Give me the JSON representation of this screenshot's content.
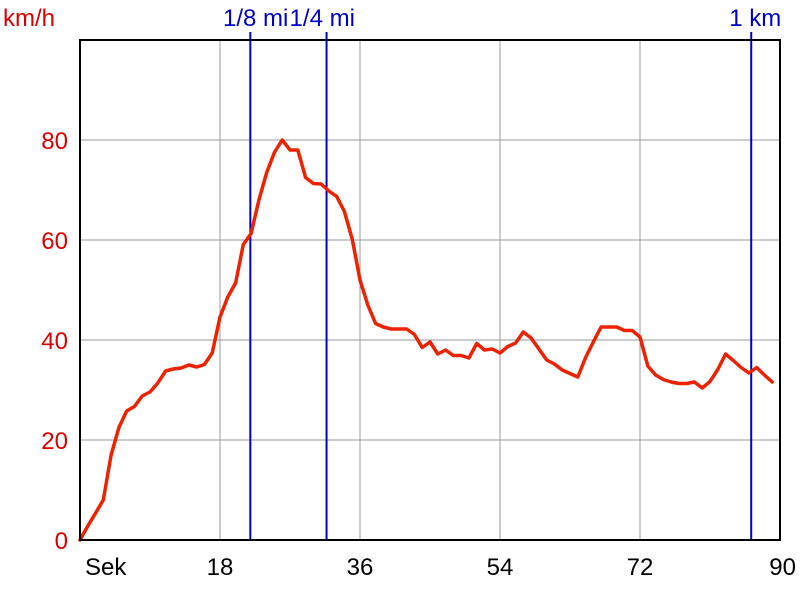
{
  "colors": {
    "series": "#ee2200",
    "axis_text_y": "#dd0000",
    "marker": "#0000cc",
    "grid": "#999999",
    "frame": "#000000"
  },
  "chart_data": {
    "type": "line",
    "title": "",
    "ylabel": "km/h",
    "xlabel": "Sek",
    "xlim": [
      0,
      90
    ],
    "ylim": [
      0,
      100
    ],
    "grid": true,
    "x_ticks": [
      {
        "value": 0,
        "label": "Sek"
      },
      {
        "value": 18,
        "label": "18"
      },
      {
        "value": 36,
        "label": "36"
      },
      {
        "value": 54,
        "label": "54"
      },
      {
        "value": 72,
        "label": "72"
      },
      {
        "value": 90,
        "label": "90"
      }
    ],
    "y_ticks": [
      {
        "value": 0,
        "label": "0"
      },
      {
        "value": 20,
        "label": "20"
      },
      {
        "value": 40,
        "label": "40"
      },
      {
        "value": 60,
        "label": "60"
      },
      {
        "value": 80,
        "label": "80"
      }
    ],
    "markers": [
      {
        "label": "1/8 mi",
        "x": 21.9
      },
      {
        "label": "1/4 mi",
        "x": 31.7
      },
      {
        "label": "1 km",
        "x": 86.3
      }
    ],
    "series": [
      {
        "x": [
          0,
          1,
          2,
          3,
          4,
          5,
          6,
          7,
          8,
          9,
          10,
          11,
          12,
          13,
          14,
          15,
          16,
          17,
          18,
          19,
          20,
          21,
          22,
          23,
          24,
          25,
          26,
          27,
          28,
          29,
          30,
          31,
          32,
          33,
          34,
          35,
          36,
          37,
          38,
          39,
          40,
          41,
          42,
          43,
          44,
          45,
          46,
          47,
          48,
          49,
          50,
          51,
          52,
          53,
          54,
          55,
          56,
          57,
          58,
          59,
          60,
          61,
          62,
          63,
          64,
          65,
          66,
          67,
          68,
          69,
          70,
          71,
          72,
          73,
          74,
          75,
          76,
          77,
          78,
          79,
          80,
          81,
          82,
          83,
          84,
          85,
          86,
          87,
          88,
          89
        ],
        "values": [
          0,
          2.8,
          5.4,
          8,
          17,
          22.5,
          25.8,
          26.7,
          28.8,
          29.6,
          31.4,
          33.8,
          34.2,
          34.4,
          35,
          34.6,
          35.1,
          37.4,
          44.6,
          48.6,
          51.4,
          59.1,
          61.3,
          68,
          73.5,
          77.5,
          80,
          78,
          78,
          72.5,
          71.3,
          71.2,
          69.8,
          68.7,
          65.7,
          60.2,
          52,
          47,
          43.3,
          42.6,
          42.2,
          42.2,
          42.2,
          41.1,
          38.5,
          39.6,
          37.2,
          38,
          36.9,
          36.9,
          36.4,
          39.3,
          38,
          38.2,
          37.4,
          38.7,
          39.4,
          41.6,
          40.4,
          38.2,
          36,
          35.2,
          34,
          33.3,
          32.6,
          36.5,
          39.6,
          42.6,
          42.6,
          42.6,
          41.9,
          41.9,
          40.6,
          34.8,
          33,
          32.1,
          31.6,
          31.3,
          31.3,
          31.6,
          30.4,
          31.7,
          34.1,
          37.2,
          35.9,
          34.5,
          33.4,
          34.5,
          33,
          31.6
        ]
      }
    ]
  }
}
